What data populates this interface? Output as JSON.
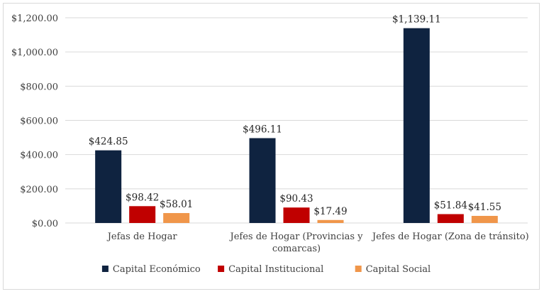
{
  "chart_data": {
    "type": "bar",
    "categories": [
      [
        "Jefas de Hogar"
      ],
      [
        "Jefes de Hogar (Provincias y",
        "comarcas)"
      ],
      [
        "Jefes de Hogar (Zona de tránsito)"
      ]
    ],
    "series": [
      {
        "name": "Capital Económico",
        "color": "#0f2340",
        "values": [
          424.85,
          496.11,
          1139.11
        ],
        "labels": [
          "$424.85",
          "$496.11",
          "$1,139.11"
        ]
      },
      {
        "name": "Capital Institucional",
        "color": "#c00000",
        "values": [
          98.42,
          90.43,
          51.84
        ],
        "labels": [
          "$98.42",
          "$90.43",
          "$51.84"
        ]
      },
      {
        "name": "Capital Social",
        "color": "#f0964a",
        "values": [
          58.01,
          17.49,
          41.55
        ],
        "labels": [
          "$58.01",
          "$17.49",
          "$41.55"
        ]
      }
    ],
    "yticks": [
      0,
      200,
      400,
      600,
      800,
      1000,
      1200
    ],
    "ytick_labels": [
      "$0.00",
      "$200.00",
      "$400.00",
      "$600.00",
      "$800.00",
      "$1,000.00",
      "$1,200.00"
    ],
    "ylim": [
      0,
      1200
    ],
    "grid": true,
    "legend": "bottom",
    "gridline_color": "#d9d9d9"
  }
}
